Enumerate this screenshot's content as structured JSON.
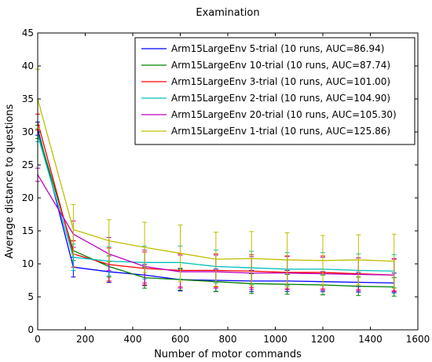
{
  "chart_data": {
    "type": "line",
    "title": "Examination",
    "xlabel": "Number of motor commands",
    "ylabel": "Average distance to questions",
    "xlim": [
      0,
      1600
    ],
    "ylim": [
      0,
      45
    ],
    "xticks": [
      0,
      200,
      400,
      600,
      800,
      1000,
      1200,
      1400,
      1600
    ],
    "yticks": [
      0,
      5,
      10,
      15,
      20,
      25,
      30,
      35,
      40,
      45
    ],
    "grid": false,
    "legend_position": "top-right",
    "x": [
      0,
      150,
      300,
      450,
      600,
      750,
      900,
      1050,
      1200,
      1350,
      1500
    ],
    "series": [
      {
        "name": "Arm15LargeEnv 5-trial (10 runs, AUC=86.94)",
        "color": "#0000ff",
        "values": [
          30.5,
          9.5,
          8.8,
          8.3,
          7.6,
          7.5,
          7.4,
          7.4,
          7.3,
          7.2,
          7.1
        ],
        "err": [
          1.0,
          1.5,
          1.6,
          1.6,
          1.7,
          1.7,
          1.6,
          1.6,
          1.5,
          1.5,
          1.5
        ]
      },
      {
        "name": "Arm15LargeEnv 10-trial (10 runs, AUC=87.74)",
        "color": "#008000",
        "values": [
          30.0,
          12.0,
          9.6,
          7.9,
          7.6,
          7.3,
          7.0,
          6.9,
          6.8,
          6.6,
          6.5
        ],
        "err": [
          1.0,
          1.5,
          1.6,
          1.6,
          1.6,
          1.5,
          1.5,
          1.5,
          1.5,
          1.4,
          1.4
        ]
      },
      {
        "name": "Arm15LargeEnv 3-trial (10 runs, AUC=101.00)",
        "color": "#ff0000",
        "values": [
          31.5,
          11.5,
          9.9,
          9.3,
          9.0,
          9.0,
          8.9,
          8.7,
          8.7,
          8.5,
          8.3
        ],
        "err": [
          1.2,
          2.0,
          2.5,
          2.5,
          2.5,
          2.5,
          2.5,
          2.5,
          2.5,
          2.4,
          2.4
        ]
      },
      {
        "name": "Arm15LargeEnv 2-trial (10 runs, AUC=104.90)",
        "color": "#00bfbf",
        "values": [
          29.5,
          11.0,
          10.4,
          10.2,
          10.2,
          9.6,
          9.4,
          9.2,
          9.2,
          9.0,
          8.9
        ],
        "err": [
          1.0,
          2.0,
          2.2,
          2.5,
          2.5,
          2.5,
          2.5,
          2.5,
          2.5,
          2.5,
          2.5
        ]
      },
      {
        "name": "Arm15LargeEnv 20-trial (10 runs, AUC=105.30)",
        "color": "#bf00bf",
        "values": [
          23.5,
          14.5,
          11.5,
          9.6,
          8.8,
          8.8,
          8.6,
          8.6,
          8.5,
          8.4,
          8.3
        ],
        "err": [
          1.0,
          2.0,
          2.5,
          2.5,
          2.5,
          2.5,
          2.5,
          2.5,
          2.5,
          2.5,
          2.5
        ]
      },
      {
        "name": "Arm15LargeEnv 1-trial (10 runs, AUC=125.86)",
        "color": "#bfbf00",
        "values": [
          35.0,
          15.2,
          13.5,
          12.5,
          11.6,
          10.7,
          10.8,
          10.6,
          10.5,
          10.6,
          10.4
        ],
        "err": [
          4.5,
          3.8,
          3.2,
          3.8,
          4.3,
          4.1,
          4.1,
          4.1,
          3.8,
          3.8,
          4.1
        ]
      }
    ]
  }
}
